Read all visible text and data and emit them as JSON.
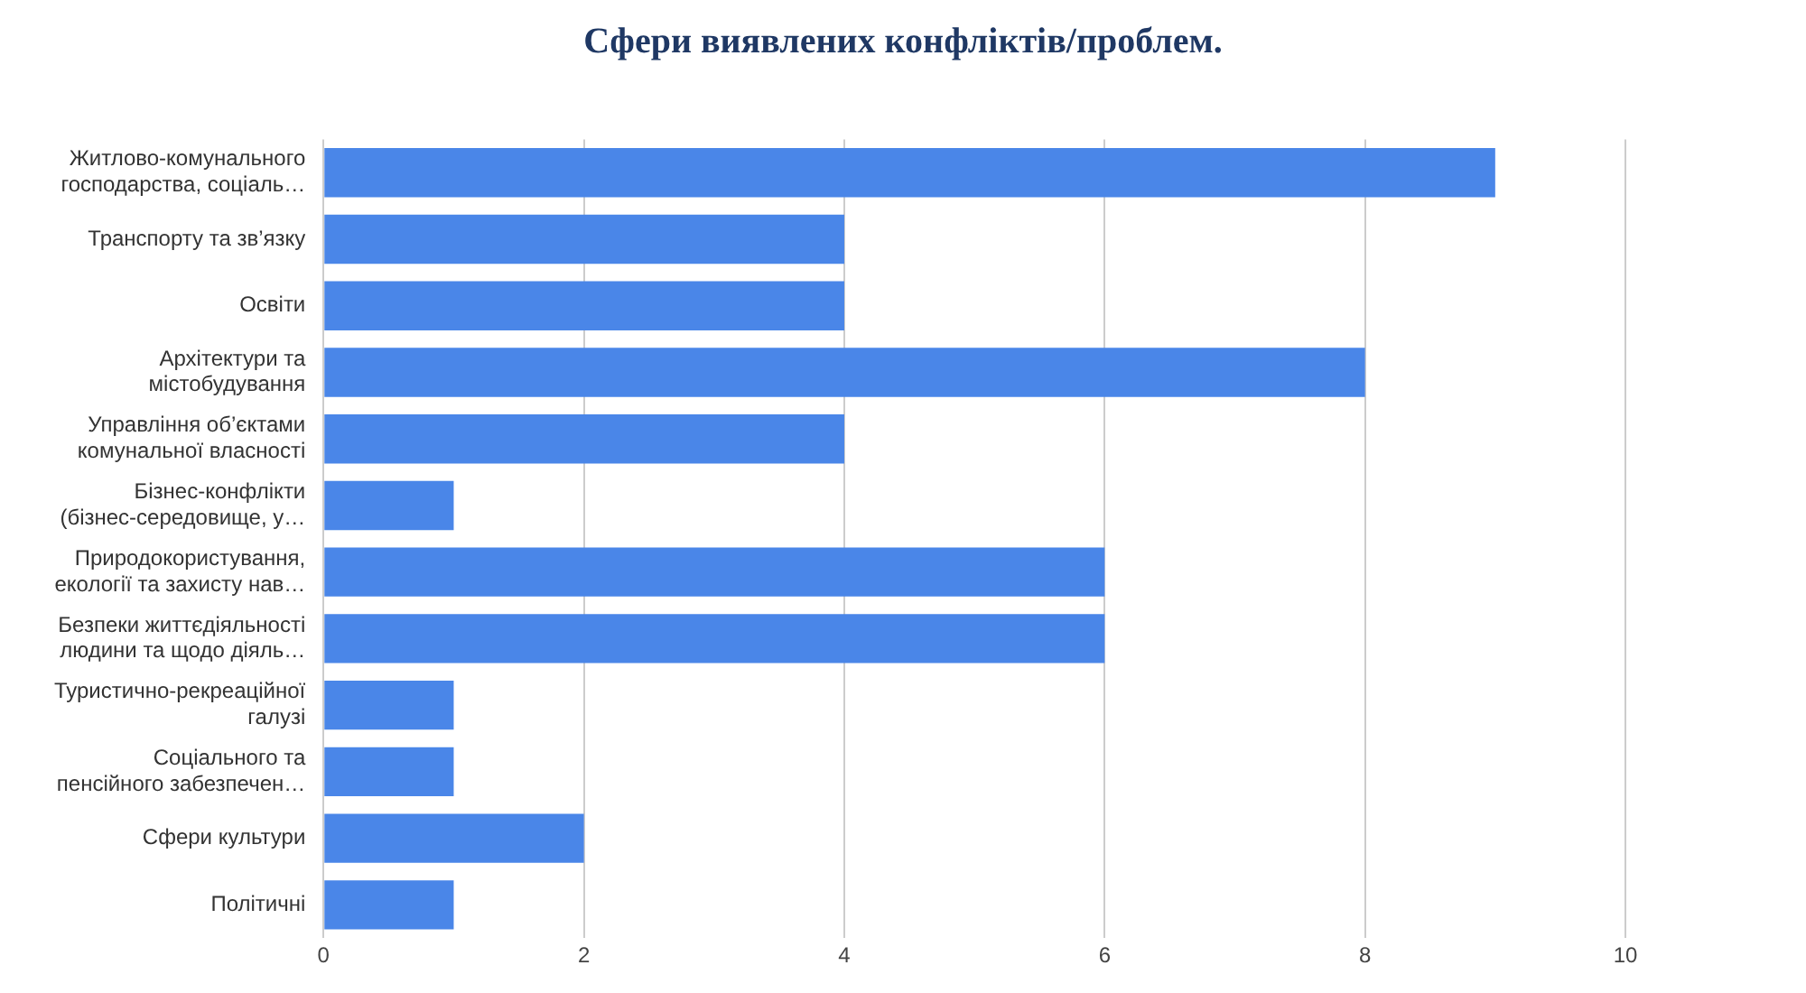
{
  "chart_data": {
    "type": "bar",
    "orientation": "horizontal",
    "title": "Сфери виявлених конфліктів/проблем.",
    "categories": [
      "Житлово-комунального\nгосподарства, соціаль…",
      "Транспорту та зв’язку",
      "Освіти",
      "Архітектури та\nмістобудування",
      "Управління об’єктами\nкомунальної власності",
      "Бізнес-конфлікти\n(бізнес-середовище, у…",
      "Природокористування,\nекології та захисту нав…",
      "Безпеки життєдіяльності\nлюдини та щодо діяль…",
      "Туристично-рекреаційної\nгалузі",
      "Соціального та\nпенсійного забезпечен…",
      "Сфери культури",
      "Політичні"
    ],
    "values": [
      9,
      4,
      4,
      8,
      4,
      1,
      6,
      6,
      1,
      1,
      2,
      1
    ],
    "color": "#4a86e8",
    "xlim": [
      0,
      10
    ],
    "xticks": [
      0,
      2,
      4,
      6,
      8,
      10
    ],
    "grid": "x",
    "legend": false
  }
}
